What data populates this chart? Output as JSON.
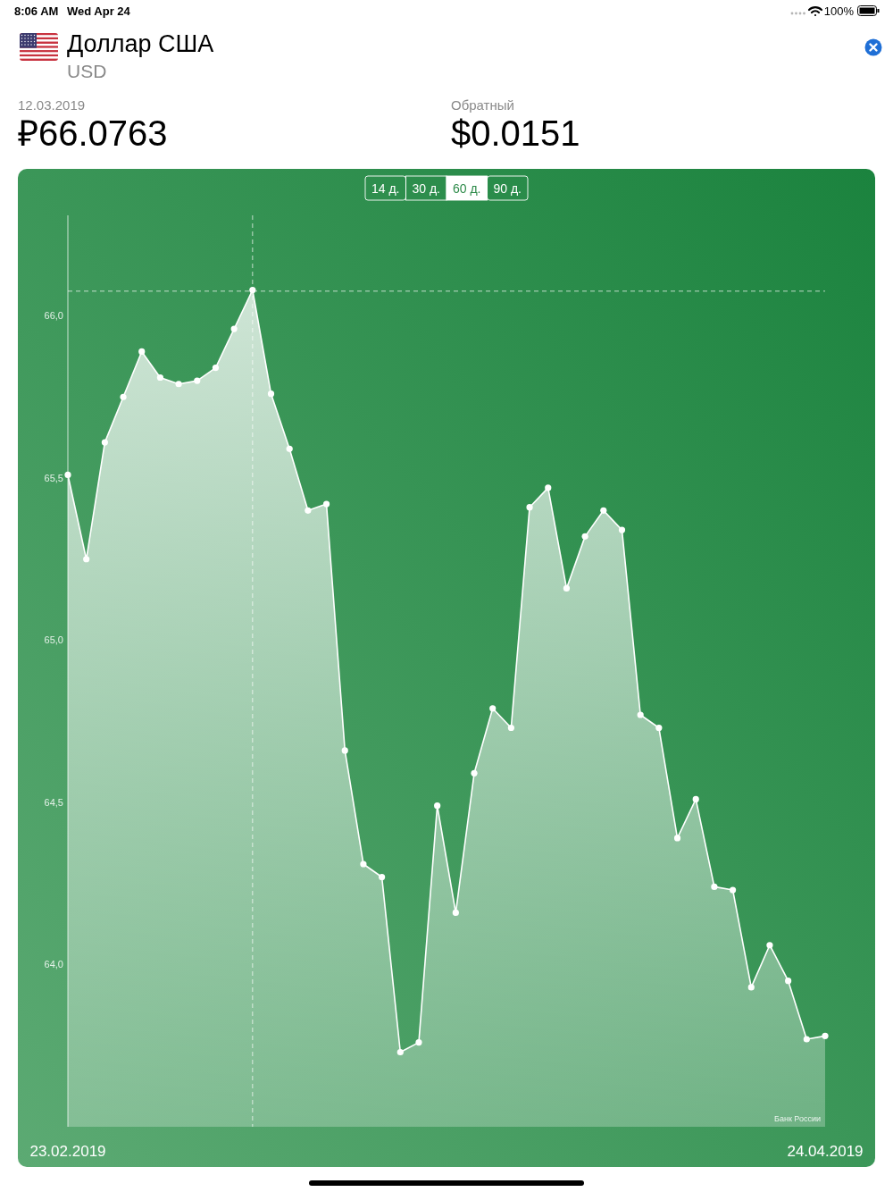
{
  "chart_data": {
    "type": "area",
    "title": "Доллар США",
    "subtitle": "USD",
    "categories": [
      "23.02.2019",
      null,
      null,
      null,
      null,
      null,
      null,
      null,
      null,
      null,
      null,
      null,
      null,
      null,
      null,
      null,
      null,
      null,
      null,
      null,
      null,
      null,
      null,
      null,
      null,
      null,
      null,
      null,
      null,
      null,
      null,
      null,
      null,
      null,
      null,
      null,
      null,
      null,
      null,
      null,
      null,
      "24.04.2019"
    ],
    "values": [
      65.51,
      65.25,
      65.61,
      65.75,
      65.89,
      65.81,
      65.79,
      65.8,
      65.84,
      65.96,
      66.08,
      65.76,
      65.59,
      65.4,
      65.42,
      64.66,
      64.31,
      64.27,
      63.73,
      63.76,
      64.49,
      64.16,
      64.59,
      64.79,
      64.73,
      65.41,
      65.47,
      65.16,
      65.32,
      65.4,
      65.34,
      64.77,
      64.73,
      64.39,
      64.51,
      64.24,
      64.23,
      63.93,
      64.06,
      63.95,
      63.77,
      63.78
    ],
    "color": "#ffffff",
    "marker": "circle",
    "ylim": [
      63.5,
      66.31
    ],
    "yticks": [
      {
        "value": 64,
        "label": "64,0"
      },
      {
        "value": 64.5,
        "label": "64,5"
      },
      {
        "value": 65,
        "label": "65,0"
      },
      {
        "value": 65.5,
        "label": "65,5"
      },
      {
        "value": 66,
        "label": "66,0"
      }
    ],
    "ref_lines": [
      {
        "axis": "y",
        "value": 66.0763,
        "line_style": "dashed"
      }
    ],
    "annotations": [
      "8:06 AM",
      "Wed Apr 24",
      "100%",
      "12.03.2019",
      "₽66.0763",
      "Обратный",
      "$0.0151",
      "14 д.",
      "30 д.",
      "60 д.",
      "90 д.",
      "Банк России"
    ]
  }
}
